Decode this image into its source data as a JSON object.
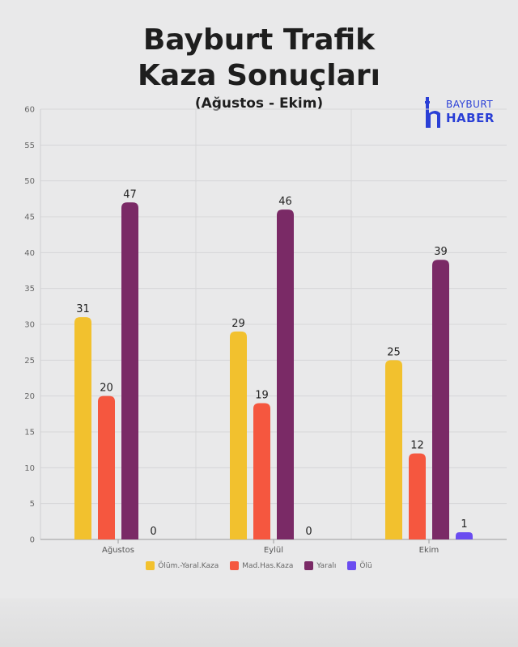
{
  "title": {
    "line1": "Bayburt Trafik",
    "line2": "Kaza Sonuçları"
  },
  "subtitle": "(Ağustos - Ekim)",
  "logo": {
    "line1": "BAYBURT",
    "line2": "HABER",
    "color": "#2a3fd6"
  },
  "chart_data": {
    "type": "bar",
    "title": "Bayburt Trafik Kaza Sonuçları",
    "subtitle": "(Ağustos - Ekim)",
    "categories": [
      "Ağustos",
      "Eylül",
      "Ekim"
    ],
    "series": [
      {
        "name": "Ölüm.-Yaral.Kaza",
        "values": [
          31,
          29,
          25
        ],
        "color": "#f2c12e"
      },
      {
        "name": "Mad.Has.Kaza",
        "values": [
          20,
          19,
          12
        ],
        "color": "#f5573f"
      },
      {
        "name": "Yaralı",
        "values": [
          47,
          46,
          39
        ],
        "color": "#7a2a66"
      },
      {
        "name": "Ölü",
        "values": [
          0,
          0,
          1
        ],
        "color": "#6a4cf0"
      }
    ],
    "ylim": [
      0,
      60
    ],
    "yticks": [
      0,
      5,
      10,
      15,
      20,
      25,
      30,
      35,
      40,
      45,
      50,
      55,
      60
    ],
    "xlabel": "",
    "ylabel": "",
    "grid": true,
    "legend": "bottom",
    "data_labels": true
  }
}
